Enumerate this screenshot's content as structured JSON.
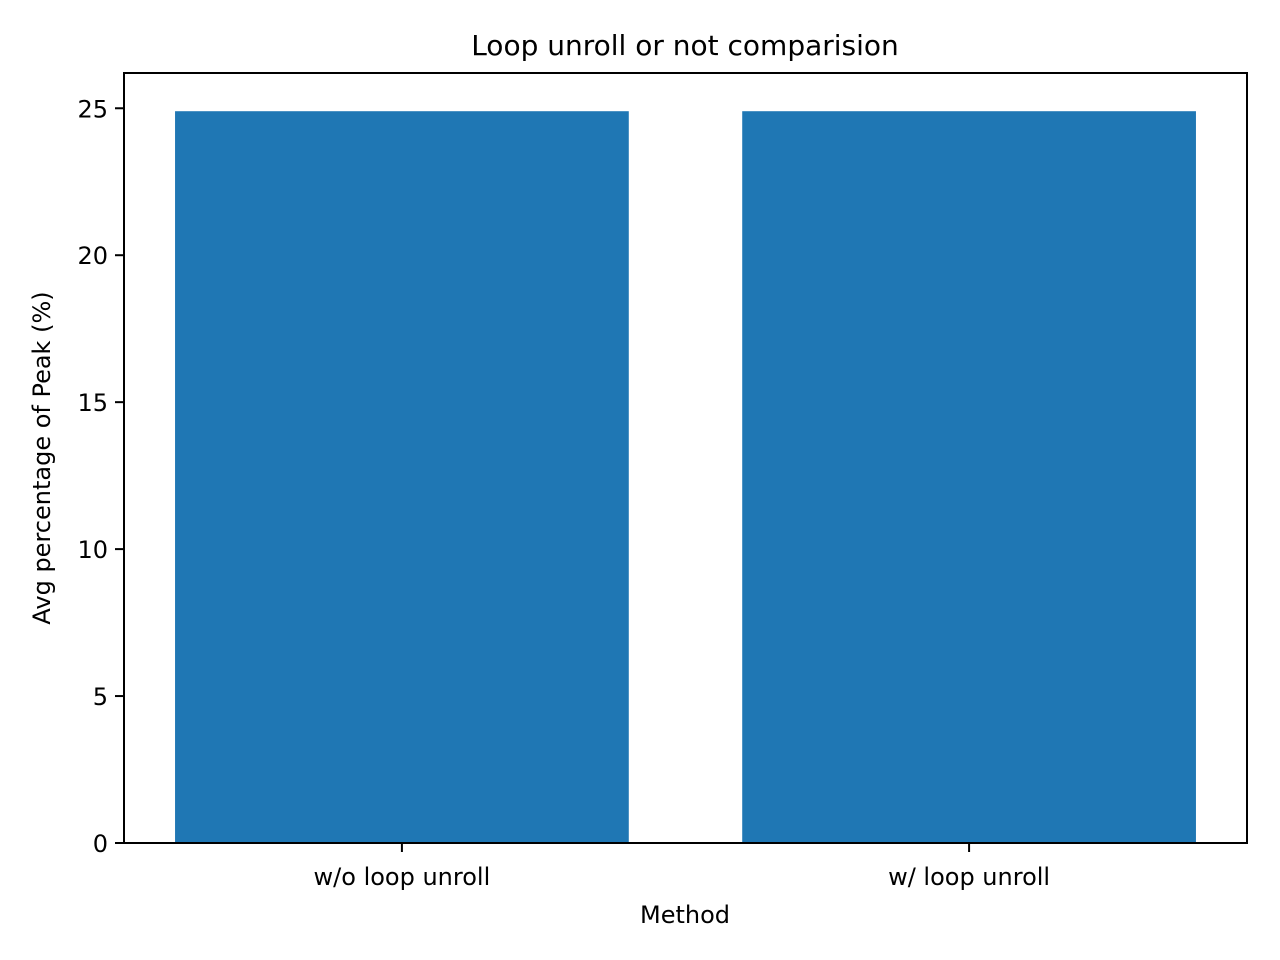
{
  "chart_data": {
    "type": "bar",
    "title": "Loop unroll or not comparision",
    "xlabel": "Method",
    "ylabel": "Avg percentage of Peak (%)",
    "categories": [
      "w/o loop unroll",
      "w/ loop unroll"
    ],
    "values": [
      24.9,
      24.9
    ],
    "ylim": [
      0,
      26.2
    ],
    "yticks": [
      0,
      5,
      10,
      15,
      20,
      25
    ],
    "bar_color": "#1f77b4",
    "grid": false,
    "legend": "none"
  }
}
